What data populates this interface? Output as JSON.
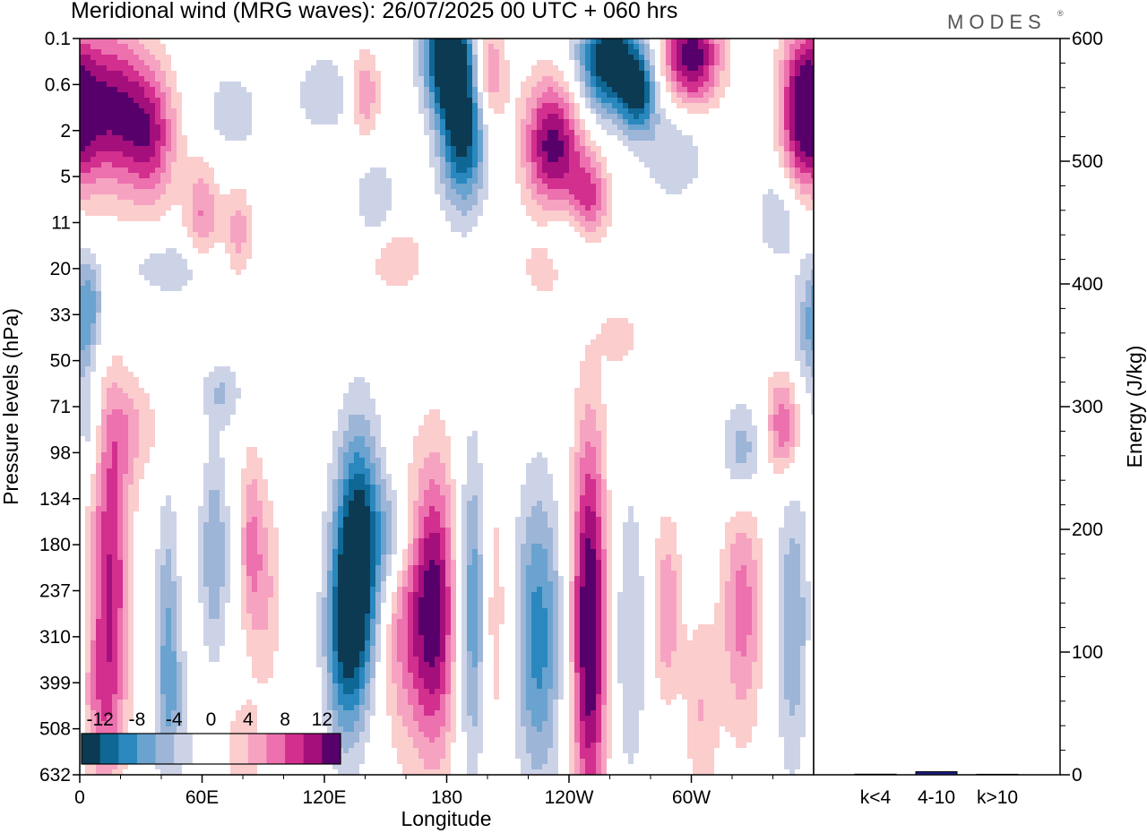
{
  "header": {
    "title": "Meridional wind (MRG waves):  26/07/2025  00 UTC  + 060 hrs",
    "brand": "MODES",
    "brand_mark": "®"
  },
  "colors": {
    "scale": [
      "#0b3a52",
      "#0f6796",
      "#2a88bf",
      "#6aa3cf",
      "#9db5d7",
      "#cdd3e7",
      "#ffffff",
      "#ffffff",
      "#fbcdcd",
      "#f6a3c2",
      "#ec71ae",
      "#d22f8e",
      "#a50f7c",
      "#57006b"
    ],
    "energy_bar": "#1a1a80"
  },
  "chart_data": [
    {
      "type": "heatmap",
      "title": "Meridional wind (MRG waves):  26/07/2025  00 UTC  + 060 hrs",
      "xlabel": "Longitude",
      "ylabel": "Pressure levels (hPa)",
      "x_ticks": [
        "0",
        "60E",
        "120E",
        "180",
        "120W",
        "60W"
      ],
      "x_tick_degrees": [
        0,
        60,
        120,
        180,
        240,
        300
      ],
      "x_range": [
        0,
        360
      ],
      "y_ticks": [
        "0.1",
        "0.6",
        "2",
        "5",
        "11",
        "20",
        "33",
        "50",
        "71",
        "98",
        "134",
        "180",
        "237",
        "310",
        "399",
        "508",
        "632"
      ],
      "colorbar": {
        "labels": [
          "-12",
          "-8",
          "-4",
          "0",
          "4",
          "8",
          "12"
        ],
        "levels": [
          -14,
          -12,
          -10,
          -8,
          -6,
          -4,
          -2,
          0,
          2,
          4,
          6,
          8,
          10,
          12,
          14
        ]
      },
      "features": [
        {
          "lon": 15,
          "lev": 1.5,
          "val": 12,
          "lon_w": 14,
          "lev_w": 1.2
        },
        {
          "lon": 35,
          "lev": 2.2,
          "val": 8,
          "lon_w": 9,
          "lev_w": 1.0
        },
        {
          "lon": 60,
          "lev": 3.8,
          "val": 6,
          "lon_w": 6,
          "lev_w": 0.8
        },
        {
          "lon": 78,
          "lev": 4.2,
          "val": 5,
          "lon_w": 5,
          "lev_w": 0.7
        },
        {
          "lon": 75,
          "lev": 1.6,
          "val": -4,
          "lon_w": 9,
          "lev_w": 0.6
        },
        {
          "lon": 120,
          "lev": 1.2,
          "val": -4,
          "lon_w": 10,
          "lev_w": 0.6
        },
        {
          "lon": 140,
          "lev": 1.2,
          "val": 6,
          "lon_w": 5,
          "lev_w": 0.7
        },
        {
          "lon": 180,
          "lev": 0.3,
          "val": -15,
          "lon_w": 8,
          "lev_w": 0.9
        },
        {
          "lon": 188,
          "lev": 1.9,
          "val": -14,
          "lon_w": 8,
          "lev_w": 1.2
        },
        {
          "lon": 145,
          "lev": 3.5,
          "val": -4,
          "lon_w": 7,
          "lev_w": 0.7
        },
        {
          "lon": 200,
          "lev": 0.8,
          "val": 8,
          "lon_w": 6,
          "lev_w": 0.8
        },
        {
          "lon": 232,
          "lev": 2.3,
          "val": 13,
          "lon_w": 10,
          "lev_w": 1.0
        },
        {
          "lon": 250,
          "lev": 3.5,
          "val": 8,
          "lon_w": 7,
          "lev_w": 0.7
        },
        {
          "lon": 260,
          "lev": 0.5,
          "val": -15,
          "lon_w": 11,
          "lev_w": 0.8
        },
        {
          "lon": 274,
          "lev": 1.2,
          "val": -10,
          "lon_w": 6,
          "lev_w": 0.6
        },
        {
          "lon": 300,
          "lev": 0.4,
          "val": 14,
          "lon_w": 10,
          "lev_w": 0.8
        },
        {
          "lon": 292,
          "lev": 2.3,
          "val": -4,
          "lon_w": 12,
          "lev_w": 0.9
        },
        {
          "lon": 355,
          "lev": 1.6,
          "val": 12,
          "lon_w": 8,
          "lev_w": 1.3
        },
        {
          "lon": 345,
          "lev": 3.8,
          "val": -4,
          "lon_w": 10,
          "lev_w": 0.8
        },
        {
          "lon": 155,
          "lev": 4.8,
          "val": 4,
          "lon_w": 10,
          "lev_w": 0.5
        },
        {
          "lon": 45,
          "lev": 5.0,
          "val": -4,
          "lon_w": 14,
          "lev_w": 0.4
        },
        {
          "lon": 240,
          "lev": 4.5,
          "val": -4,
          "lon_w": 9,
          "lev_w": 0.6
        },
        {
          "lon": 230,
          "lev": 5.0,
          "val": 4,
          "lon_w": 9,
          "lev_w": 0.5
        },
        {
          "lon": 360,
          "lev": 6.4,
          "val": -6,
          "lon_w": 7,
          "lev_w": 1.0
        },
        {
          "lon": 5,
          "lev": 5.6,
          "val": -4,
          "lon_w": 5,
          "lev_w": 0.7
        },
        {
          "lon": 265,
          "lev": 6.5,
          "val": 4,
          "lon_w": 6,
          "lev_w": 0.4
        },
        {
          "lon": 25,
          "lev": 8.5,
          "val": 4,
          "lon_w": 10,
          "lev_w": 0.8
        },
        {
          "lon": 345,
          "lev": 8.4,
          "val": 8,
          "lon_w": 6,
          "lev_w": 0.8
        },
        {
          "lon": 5,
          "lev": 8.6,
          "val": -4,
          "lon_w": 4,
          "lev_w": 0.7
        },
        {
          "lon": 70,
          "lev": 7.7,
          "val": -4,
          "lon_w": 7,
          "lev_w": 0.5
        },
        {
          "lon": 325,
          "lev": 9.0,
          "val": -6,
          "lon_w": 7,
          "lev_w": 0.8
        },
        {
          "lon": 15,
          "lev": 11.6,
          "val": 10,
          "lon_w": 7,
          "lev_w": 2.6
        },
        {
          "lon": 43,
          "lev": 12.5,
          "val": -5,
          "lon_w": 4,
          "lev_w": 2.0
        },
        {
          "lon": 66,
          "lev": 11.2,
          "val": -6,
          "lon_w": 5,
          "lev_w": 1.6
        },
        {
          "lon": 84,
          "lev": 11.0,
          "val": 6,
          "lon_w": 4,
          "lev_w": 1.4
        },
        {
          "lon": 92,
          "lev": 12.0,
          "val": 4,
          "lon_w": 5,
          "lev_w": 1.6
        },
        {
          "lon": 137,
          "lev": 11.2,
          "val": -15,
          "lon_w": 8,
          "lev_w": 1.9
        },
        {
          "lon": 130,
          "lev": 13.2,
          "val": -9,
          "lon_w": 7,
          "lev_w": 1.6
        },
        {
          "lon": 155,
          "lev": 10.8,
          "val": -6,
          "lon_w": 7,
          "lev_w": 0.9
        },
        {
          "lon": 162,
          "lev": 12.5,
          "val": 8,
          "lon_w": 10,
          "lev_w": 2.0
        },
        {
          "lon": 175,
          "lev": 12.4,
          "val": 10,
          "lon_w": 7,
          "lev_w": 2.3
        },
        {
          "lon": 193,
          "lev": 12.4,
          "val": -8,
          "lon_w": 5,
          "lev_w": 2.4
        },
        {
          "lon": 203,
          "lev": 12.5,
          "val": 4,
          "lon_w": 5,
          "lev_w": 2.2
        },
        {
          "lon": 225,
          "lev": 13.0,
          "val": -9,
          "lon_w": 8,
          "lev_w": 2.3
        },
        {
          "lon": 250,
          "lev": 12.8,
          "val": 15,
          "lon_w": 6,
          "lev_w": 3.0
        },
        {
          "lon": 270,
          "lev": 13.0,
          "val": -4,
          "lon_w": 6,
          "lev_w": 2.4
        },
        {
          "lon": 288,
          "lev": 12.4,
          "val": 6,
          "lon_w": 5,
          "lev_w": 1.4
        },
        {
          "lon": 305,
          "lev": 14.6,
          "val": 4,
          "lon_w": 6,
          "lev_w": 1.5
        },
        {
          "lon": 325,
          "lev": 12.4,
          "val": 7,
          "lon_w": 7,
          "lev_w": 1.9
        },
        {
          "lon": 350,
          "lev": 12.8,
          "val": -6,
          "lon_w": 6,
          "lev_w": 2.2
        },
        {
          "lon": 45,
          "lev": 14.6,
          "val": -4,
          "lon_w": 6,
          "lev_w": 1.4
        },
        {
          "lon": 80,
          "lev": 15.6,
          "val": 4,
          "lon_w": 6,
          "lev_w": 0.9
        },
        {
          "lon": 10,
          "lev": 14.6,
          "val": 4,
          "lon_w": 7,
          "lev_w": 1.4
        }
      ]
    },
    {
      "type": "bar",
      "ylabel": "Energy (J/kg)",
      "categories": [
        "k<4",
        "4-10",
        "k>10"
      ],
      "values": [
        0.5,
        2.5,
        0.4
      ],
      "ylim": [
        0,
        600
      ],
      "y_ticks": [
        "0",
        "100",
        "200",
        "300",
        "400",
        "500",
        "600"
      ]
    }
  ]
}
